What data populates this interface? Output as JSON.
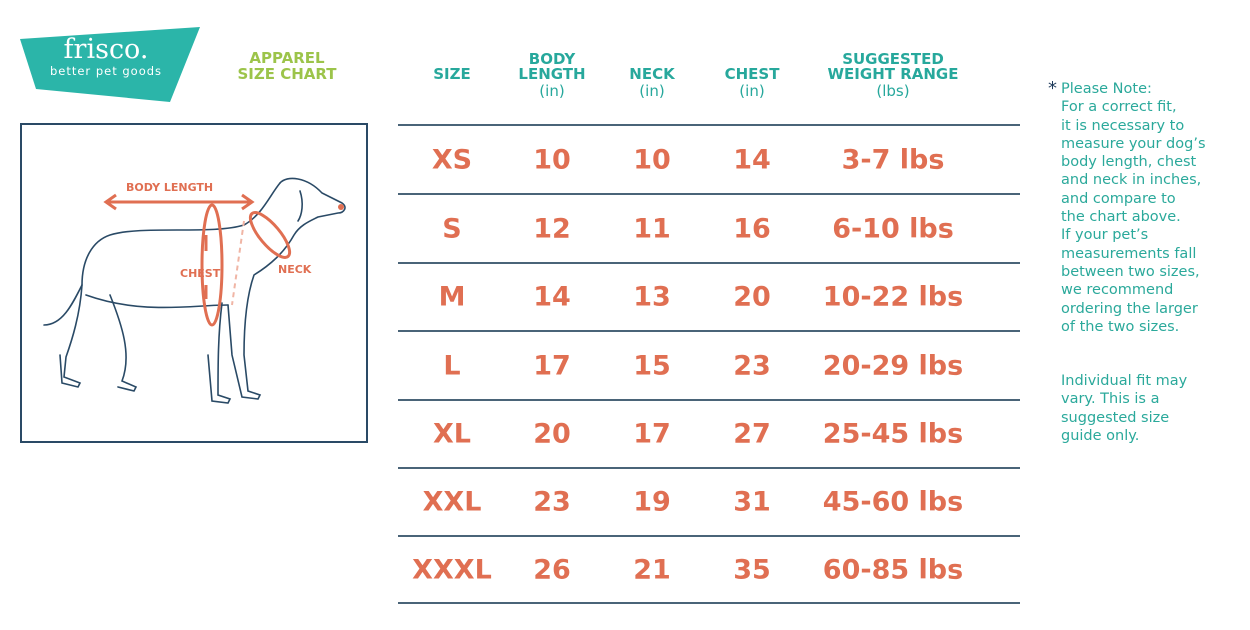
{
  "brand": {
    "name": "frisco.",
    "tagline": "better pet goods",
    "color": "#2bb5a9"
  },
  "title": {
    "line1": "APPAREL",
    "line2": "SIZE  CHART",
    "color": "#9cc44a"
  },
  "diagram": {
    "labels": {
      "body_length": "BODY LENGTH",
      "chest": "CHEST",
      "neck": "NECK"
    },
    "accent": "#e06f52"
  },
  "table": {
    "headers": [
      {
        "label": "SIZE",
        "unit": ""
      },
      {
        "label": "BODY LENGTH",
        "unit": "(in)"
      },
      {
        "label": "NECK",
        "unit": "(in)"
      },
      {
        "label": "CHEST",
        "unit": "(in)"
      },
      {
        "label": "SUGGESTED WEIGHT RANGE",
        "unit": "(lbs)"
      }
    ],
    "rows": [
      [
        "XS",
        "10",
        "10",
        "14",
        "3-7 lbs"
      ],
      [
        "S",
        "12",
        "11",
        "16",
        "6-10 lbs"
      ],
      [
        "M",
        "14",
        "13",
        "20",
        "10-22 lbs"
      ],
      [
        "L",
        "17",
        "15",
        "23",
        "20-29 lbs"
      ],
      [
        "XL",
        "20",
        "17",
        "27",
        "25-45 lbs"
      ],
      [
        "XXL",
        "23",
        "19",
        "31",
        "45-60 lbs"
      ],
      [
        "XXXL",
        "26",
        "21",
        "35",
        "60-85 lbs"
      ]
    ]
  },
  "note": {
    "star": "*",
    "lines": [
      "Please Note:",
      "For a correct fit,",
      "it is necessary to",
      "measure your dog’s",
      "body length, chest",
      "and neck in inches,",
      "and compare to",
      "the chart above.",
      "If your pet’s",
      "measurements fall",
      "between two sizes,",
      "we recommend",
      "ordering the larger",
      "of the two sizes."
    ],
    "disclaimer": [
      "Individual fit may",
      "vary. This is a",
      "suggested size",
      "guide only."
    ]
  }
}
